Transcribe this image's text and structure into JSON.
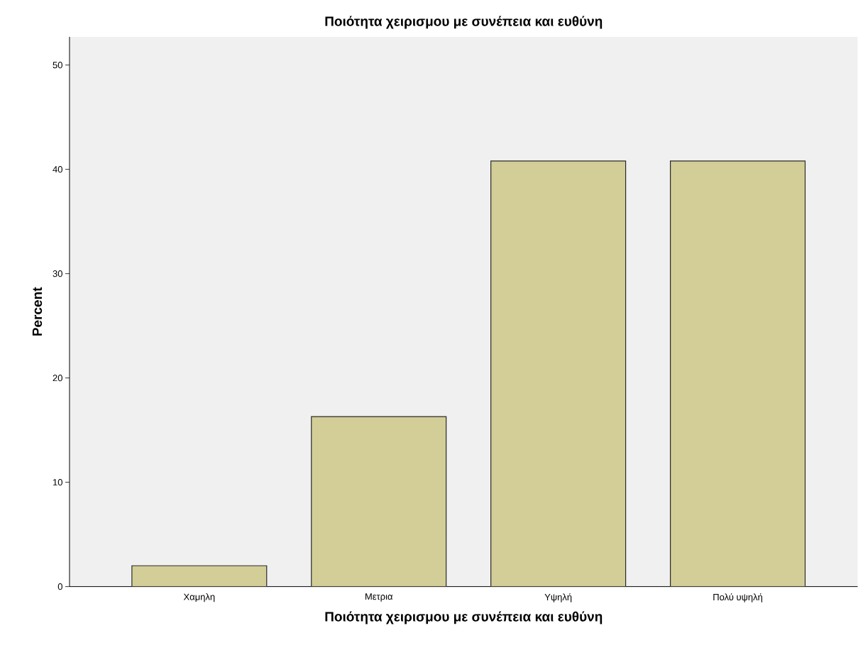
{
  "chart_data": {
    "type": "bar",
    "title": "Ποιότητα χειρισμου με συνέπεια και ευθύνη",
    "xlabel": "Ποιότητα χειρισμου με συνέπεια και ευθύνη",
    "ylabel": "Percent",
    "categories": [
      "Χαμηλη",
      "Μετρια",
      "Υψηλή",
      "Πολύ υψηλή"
    ],
    "values": [
      2.0,
      16.3,
      40.8,
      40.8
    ],
    "color": "#d3ce97",
    "ylim": [
      0,
      52.7
    ],
    "yticks": [
      0,
      10,
      20,
      30,
      40,
      50
    ],
    "grid": false
  }
}
